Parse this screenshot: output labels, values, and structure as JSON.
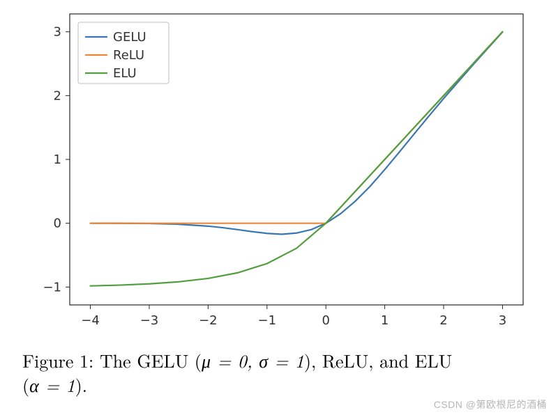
{
  "chart": {
    "type": "line",
    "background_color": "#ffffff",
    "plot_border_color": "#262626",
    "line_width": 2.2,
    "xlim": [
      -4.35,
      3.35
    ],
    "ylim": [
      -1.28,
      3.28
    ],
    "xticks": [
      -4,
      -3,
      -2,
      -1,
      0,
      1,
      2,
      3
    ],
    "yticks": [
      -1,
      0,
      1,
      2,
      3
    ],
    "tick_fontsize": 18,
    "tick_color": "#333333",
    "series": [
      {
        "name": "GELU",
        "color": "#3a76af",
        "x": [
          -4,
          -3.5,
          -3,
          -2.5,
          -2,
          -1.75,
          -1.5,
          -1.25,
          -1,
          -0.75,
          -0.5,
          -0.25,
          0,
          0.25,
          0.5,
          0.75,
          1,
          1.25,
          1.5,
          1.75,
          2,
          2.5,
          3
        ],
        "y": [
          -0.000127,
          -0.000815,
          -0.00405,
          -0.0155,
          -0.0455,
          -0.07,
          -0.1,
          -0.132,
          -0.159,
          -0.173,
          -0.154,
          -0.1,
          0,
          0.15,
          0.346,
          0.577,
          0.841,
          1.118,
          1.4,
          1.68,
          1.955,
          2.484,
          2.996
        ]
      },
      {
        "name": "ReLU",
        "color": "#ee8637",
        "x": [
          -4,
          0,
          3
        ],
        "y": [
          0,
          0,
          3
        ]
      },
      {
        "name": "ELU",
        "color": "#519e3e",
        "x": [
          -4,
          -3.5,
          -3,
          -2.5,
          -2,
          -1.5,
          -1,
          -0.5,
          0,
          3
        ],
        "y": [
          -0.982,
          -0.97,
          -0.95,
          -0.918,
          -0.865,
          -0.777,
          -0.632,
          -0.393,
          0,
          3
        ]
      }
    ],
    "legend": {
      "position": "upper-left",
      "box_border": "#bfbfbf",
      "box_fill": "#ffffff",
      "fontsize": 18
    }
  },
  "caption": {
    "text_before_math": "Figure 1:  The GELU (",
    "math_segment_1": "μ = 0, σ = 1",
    "text_mid": "), ReLU, and ELU",
    "text_line2_before_math": "(",
    "math_segment_2": "α = 1",
    "text_line2_after_math": ").",
    "fontsize": 26
  },
  "watermark": "CSDN @第欧根尼的酒桶"
}
